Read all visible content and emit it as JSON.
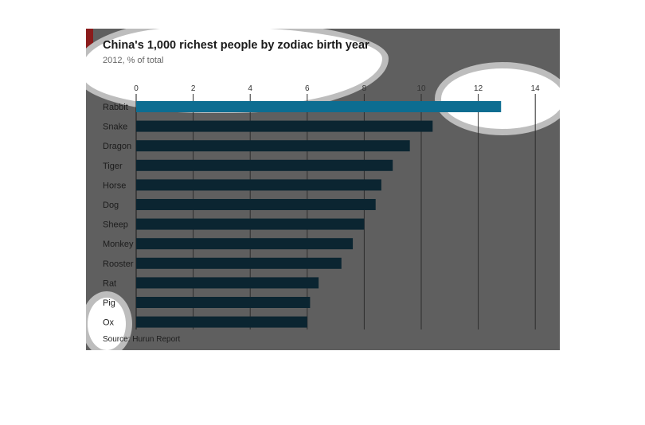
{
  "title": "China's 1,000 richest people by zodiac birth year",
  "subtitle": "2012, % of total",
  "source": "Source: Hurun Report",
  "colors": {
    "bar": "#0b2531",
    "highlight_bar": "#0d6d91",
    "grid": "#2e2e2e",
    "category_text": "#1c1c1c",
    "tick_text": "#333333"
  },
  "chart_data": {
    "type": "bar",
    "orientation": "horizontal",
    "title": "China's 1,000 richest people by zodiac birth year",
    "subtitle": "2012, % of total",
    "categories": [
      "Rabbit",
      "Snake",
      "Dragon",
      "Tiger",
      "Horse",
      "Dog",
      "Sheep",
      "Monkey",
      "Rooster",
      "Rat",
      "Pig",
      "Ox"
    ],
    "values": [
      12.8,
      10.4,
      9.6,
      9.0,
      8.6,
      8.4,
      8.0,
      7.6,
      7.2,
      6.4,
      6.1,
      6.0
    ],
    "highlighted": "Rabbit",
    "xlim": [
      0,
      14
    ],
    "xticks": [
      0,
      2,
      4,
      6,
      8,
      10,
      12,
      14
    ],
    "grid": true,
    "legend": "none"
  }
}
